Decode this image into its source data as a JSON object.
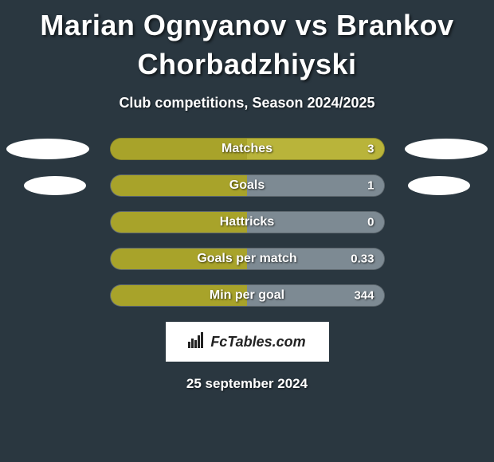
{
  "title_player1": "Marian Ognyanov",
  "title_vs": "vs",
  "title_player2": "Brankov Chorbadzhiyski",
  "subtitle": "Club competitions, Season 2024/2025",
  "date": "25 september 2024",
  "logo_text": "FcTables.com",
  "colors": {
    "background": "#2a3740",
    "bar_olive": "#a8a32a",
    "bar_olive_light": "#b9b43a",
    "bar_gray": "#7d8a93",
    "oval": "#ffffff",
    "text": "#ffffff"
  },
  "stats": [
    {
      "label": "Matches",
      "right_value": "3",
      "left_pct": 50,
      "right_pct": 50,
      "left_color": "#a8a32a",
      "right_color": "#b9b43a",
      "show_ovals": "big"
    },
    {
      "label": "Goals",
      "right_value": "1",
      "left_pct": 50,
      "right_pct": 50,
      "left_color": "#a8a32a",
      "right_color": "#7d8a93",
      "show_ovals": "small"
    },
    {
      "label": "Hattricks",
      "right_value": "0",
      "left_pct": 50,
      "right_pct": 50,
      "left_color": "#a8a32a",
      "right_color": "#7d8a93",
      "show_ovals": "none"
    },
    {
      "label": "Goals per match",
      "right_value": "0.33",
      "left_pct": 50,
      "right_pct": 50,
      "left_color": "#a8a32a",
      "right_color": "#7d8a93",
      "show_ovals": "none"
    },
    {
      "label": "Min per goal",
      "right_value": "344",
      "left_pct": 50,
      "right_pct": 50,
      "left_color": "#a8a32a",
      "right_color": "#7d8a93",
      "show_ovals": "none"
    }
  ]
}
